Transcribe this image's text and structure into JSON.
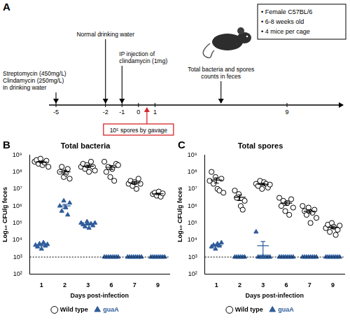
{
  "diagram": {
    "panel_label": "A",
    "timeline": {
      "ticks": [
        -5,
        -2,
        -1,
        0,
        1,
        9
      ]
    },
    "events": [
      {
        "day": -5,
        "lines": [
          "Streptomycin (450mg/L)",
          "Clindamycin (250mg/L)",
          "In drinking water"
        ]
      },
      {
        "day": -2,
        "lines": [
          "Normal drinking water"
        ]
      },
      {
        "day": -1,
        "lines": [
          "IP injection of",
          "clindamycin (1mg)"
        ]
      },
      {
        "day_range": [
          1,
          9
        ],
        "lines": [
          "Total bacteria and spores",
          "counts in feces"
        ]
      }
    ],
    "inoculation": {
      "day": 0,
      "text": "10⁵ spores by gavage"
    },
    "mouse_info": [
      "• Female C57BL/6",
      "• 6-8 weeks old",
      "• 4 mice per cage"
    ]
  },
  "chart_data": [
    {
      "type": "scatter",
      "panel_label": "B",
      "title": "Total bacteria",
      "x_label": "Days post-infection",
      "y_label": "Log₁₀ CFU/g feces",
      "categories": [
        "1",
        "2",
        "3",
        "6",
        "7",
        "9"
      ],
      "log": "y",
      "ylim": [
        100,
        1000000000
      ],
      "yticks": [
        {
          "value": 100,
          "label": "10²"
        },
        {
          "value": 1000,
          "label": "10³"
        },
        {
          "value": 10000,
          "label": "10⁴"
        },
        {
          "value": 100000,
          "label": "10⁵"
        },
        {
          "value": 1000000,
          "label": "10⁶"
        },
        {
          "value": 10000000,
          "label": "10⁷"
        },
        {
          "value": 100000000,
          "label": "10⁸"
        },
        {
          "value": 1000000000,
          "label": "10⁹"
        }
      ],
      "grid": false,
      "legend": "bottom",
      "detection_limit": 1000,
      "series": [
        {
          "name": "Wild type",
          "color": "#000000",
          "marker": "open_circle",
          "values": [
            [
              400000000,
              500000000,
              300000000,
              600000000,
              250000000,
              350000000,
              450000000,
              200000000
            ],
            [
              100000000,
              200000000,
              50000000,
              80000000,
              150000000,
              40000000
            ],
            [
              200000000,
              300000000,
              150000000,
              250000000,
              100000000,
              400000000,
              200000000,
              120000000
            ],
            [
              400000000,
              100000000,
              200000000,
              50000000,
              150000000,
              30000000,
              300000000,
              250000000
            ],
            [
              20000000,
              30000000,
              15000000,
              25000000,
              10000000,
              40000000,
              20000000
            ],
            [
              5000000,
              6000000,
              4000000,
              7000000,
              3500000,
              5500000
            ]
          ],
          "mean": [
            380000000,
            100000000,
            215000000,
            185000000,
            23000000,
            5200000
          ],
          "sem": [
            45000000,
            25000000,
            35000000,
            45000000,
            4000000,
            500000
          ]
        },
        {
          "name": "guaA",
          "color": "#2e5c9a",
          "marker": "triangle",
          "values": [
            [
              5000,
              4000,
              6000,
              3000,
              7000,
              4500,
              5500
            ],
            [
              1000000,
              500000,
              2000000,
              800000,
              300000,
              1500000
            ],
            [
              100000,
              80000,
              60000,
              120000,
              50000,
              90000,
              70000,
              100000
            ],
            [
              1000,
              1000,
              1000,
              1000,
              1000,
              1000,
              1000,
              1000
            ],
            [
              1000,
              1000,
              1000,
              1000,
              1000,
              1000,
              1000,
              1000
            ],
            [
              1000,
              1000,
              1000,
              1000,
              1000,
              1000,
              1000,
              1000
            ]
          ],
          "mean": [
            5000,
            1000000,
            84000,
            null,
            null,
            null
          ],
          "sem": [
            500,
            250000,
            8000,
            null,
            null,
            null
          ]
        }
      ]
    },
    {
      "type": "scatter",
      "panel_label": "C",
      "title": "Total spores",
      "x_label": "Days post-infection",
      "y_label": "Log₁₀ CFU/g feces",
      "categories": [
        "1",
        "2",
        "3",
        "6",
        "7",
        "9"
      ],
      "log": "y",
      "ylim": [
        100,
        1000000000
      ],
      "yticks": [
        {
          "value": 100,
          "label": "10²"
        },
        {
          "value": 1000,
          "label": "10³"
        },
        {
          "value": 10000,
          "label": "10⁴"
        },
        {
          "value": 100000,
          "label": "10⁵"
        },
        {
          "value": 1000000,
          "label": "10⁶"
        },
        {
          "value": 10000000,
          "label": "10⁷"
        },
        {
          "value": 100000000,
          "label": "10⁸"
        },
        {
          "value": 1000000000,
          "label": "10⁹"
        }
      ],
      "grid": false,
      "legend": "bottom",
      "detection_limit": 1000,
      "series": [
        {
          "name": "Wild type",
          "color": "#000000",
          "marker": "open_circle",
          "values": [
            [
              30000000,
              100000000,
              20000000,
              50000000,
              10000000,
              8000000,
              40000000,
              6000000
            ],
            [
              8000000,
              3000000,
              5000000,
              1000000,
              600000,
              2000000
            ],
            [
              20000000,
              15000000,
              30000000,
              10000000,
              25000000,
              20000000,
              12000000,
              18000000
            ],
            [
              3000000,
              1000000,
              2000000,
              500000,
              1500000,
              300000,
              2500000,
              800000
            ],
            [
              1000000,
              500000,
              300000,
              800000,
              100000,
              400000,
              600000,
              200000
            ],
            [
              50000,
              80000,
              30000,
              100000,
              60000,
              20000,
              40000,
              70000
            ]
          ],
          "mean": [
            33000000,
            3300000,
            19000000,
            1450000,
            490000,
            56000
          ],
          "sem": [
            11000000,
            1200000,
            2300000,
            340000,
            105000,
            9000
          ]
        },
        {
          "name": "guaA",
          "color": "#2e5c9a",
          "marker": "triangle",
          "values": [
            [
              4000,
              5000,
              3000,
              6000,
              4500,
              7000
            ],
            [
              1000,
              1000,
              1000,
              1000,
              1000,
              1000
            ],
            [
              30000,
              1000,
              1000,
              1000,
              1000,
              1000,
              1000,
              1000
            ],
            [
              1000,
              1000,
              1000,
              1000,
              1000,
              1000,
              1000,
              1000
            ],
            [
              1000,
              1000,
              1000,
              1000,
              1000,
              1000,
              1000,
              1000
            ],
            [
              1000,
              1000,
              1000,
              1000,
              1000,
              1000,
              1000,
              1000
            ]
          ],
          "mean": [
            4900,
            null,
            4600,
            null,
            null,
            null
          ],
          "sem": [
            580,
            null,
            3600,
            null,
            null,
            null
          ]
        }
      ]
    }
  ]
}
